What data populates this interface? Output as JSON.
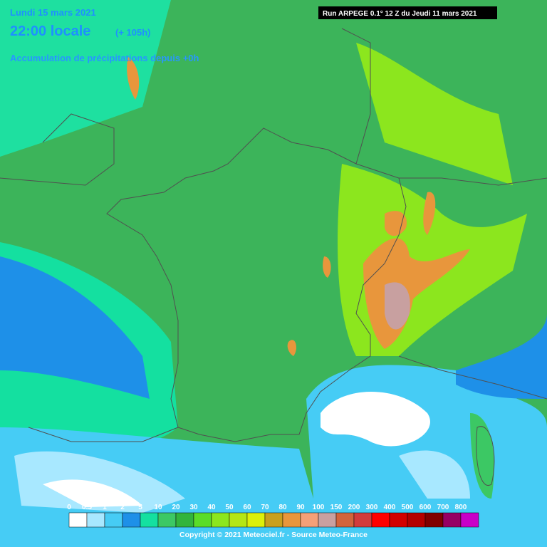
{
  "header": {
    "date": "Lundi 15 mars 2021",
    "time": "22:00 locale",
    "offset": "(+ 105h)",
    "subtitle": "Accumulation de précipitations depuis +0h",
    "run": "Run ARPEGE 0.1° 12 Z du Jeudi 11 mars 2021"
  },
  "legend": {
    "labels": [
      "0",
      "0.5",
      "1",
      "2",
      "5",
      "10",
      "20",
      "30",
      "40",
      "50",
      "60",
      "70",
      "80",
      "90",
      "100",
      "150",
      "200",
      "300",
      "400",
      "500",
      "600",
      "700",
      "800"
    ],
    "colors": [
      "#ffffff",
      "#a8e8ff",
      "#46ccf5",
      "#1e90e8",
      "#14e0a0",
      "#3cc864",
      "#32b43c",
      "#5adc28",
      "#8ce61e",
      "#b4e614",
      "#dcf00a",
      "#c8a01e",
      "#e8963c",
      "#f4a078",
      "#c8a0a0",
      "#d2643c",
      "#d23c3c",
      "#ff0000",
      "#d20000",
      "#b40000",
      "#800000",
      "#960064",
      "#c800c8"
    ]
  },
  "footer": {
    "copyright": "Copyright © 2021 Meteociel.fr - Source Meteo-France"
  }
}
